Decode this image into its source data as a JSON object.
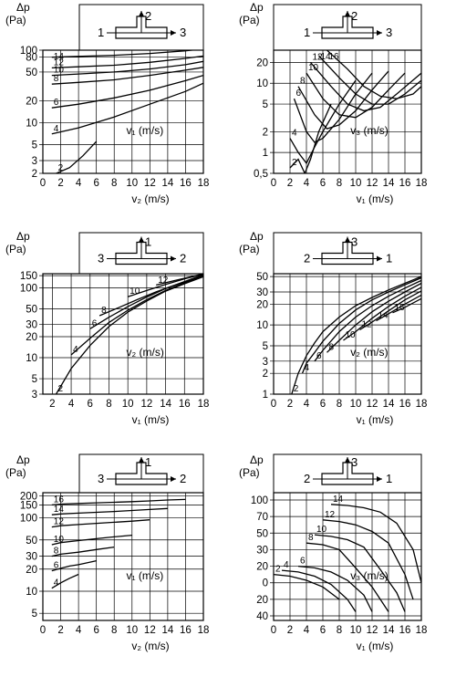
{
  "chart_data": [
    {
      "type": "line",
      "ylabel_line1": "Δp",
      "ylabel_line2": "(Pa)",
      "xlabel": "v₂ (m/s)",
      "series_label": "v₁ (m/s)",
      "xticks": [
        0,
        2,
        4,
        6,
        8,
        10,
        12,
        14,
        16,
        18
      ],
      "yticks": [
        2,
        3,
        5,
        10,
        20,
        50,
        80,
        100
      ],
      "ytick_labels": [
        "2",
        "3",
        "5",
        "10",
        "20",
        "50",
        "80",
        "100"
      ],
      "yscale": "log",
      "xlim": [
        0,
        18
      ],
      "ylim": [
        2,
        100
      ],
      "diagram": {
        "inlet": "1",
        "branch": "2",
        "outlet": "3",
        "branch_dir": "up"
      },
      "series": [
        {
          "name": "2",
          "x": [
            1.5,
            3,
            4.5,
            6
          ],
          "y": [
            2,
            2.4,
            3.5,
            5.5
          ]
        },
        {
          "name": "4",
          "x": [
            1,
            4,
            8,
            12,
            16,
            18
          ],
          "y": [
            7,
            8.5,
            12,
            18,
            27,
            35
          ]
        },
        {
          "name": "6",
          "x": [
            1,
            4,
            8,
            12,
            16,
            18
          ],
          "y": [
            16,
            18,
            22,
            28,
            38,
            45
          ]
        },
        {
          "name": "8",
          "x": [
            1,
            4,
            8,
            12,
            16,
            18
          ],
          "y": [
            34,
            36,
            39,
            45,
            53,
            58
          ]
        },
        {
          "name": "10",
          "x": [
            1,
            4,
            8,
            12,
            16,
            18
          ],
          "y": [
            45,
            47,
            50,
            55,
            63,
            70
          ]
        },
        {
          "name": "12",
          "x": [
            1,
            4,
            8,
            12,
            16,
            18
          ],
          "y": [
            57,
            59,
            62,
            68,
            77,
            83
          ]
        },
        {
          "name": "14",
          "x": [
            1,
            4,
            8,
            12,
            16,
            18
          ],
          "y": [
            80,
            82,
            85,
            90,
            98,
            104
          ]
        }
      ]
    },
    {
      "type": "line",
      "ylabel_line1": "Δp",
      "ylabel_line2": "(Pa)",
      "xlabel": "v₁ (m/s)",
      "series_label": "v₃ (m/s)",
      "xticks": [
        0,
        2,
        4,
        6,
        8,
        10,
        12,
        14,
        16,
        18
      ],
      "yticks": [
        0.5,
        1,
        2,
        5,
        10,
        20
      ],
      "ytick_labels": [
        "0,5",
        "1",
        "2",
        "5",
        "10",
        "20"
      ],
      "yscale": "log",
      "xlim": [
        0,
        18
      ],
      "ylim": [
        0.5,
        30
      ],
      "diagram": {
        "inlet": "1",
        "branch": "2",
        "outlet": "3",
        "branch_dir": "up"
      },
      "series": [
        {
          "name": "2",
          "x": [
            2,
            3,
            3.8,
            4.5,
            5.5,
            7
          ],
          "y": [
            0.6,
            0.8,
            0.5,
            0.8,
            2,
            5
          ]
        },
        {
          "name": "4",
          "x": [
            2,
            3,
            4,
            5,
            6,
            8,
            10
          ],
          "y": [
            1.6,
            1,
            0.7,
            1.2,
            2,
            5,
            11
          ]
        },
        {
          "name": "6",
          "x": [
            2.5,
            4,
            5,
            6,
            8,
            10,
            12
          ],
          "y": [
            6,
            2,
            1.4,
            1.6,
            3,
            7,
            14
          ]
        },
        {
          "name": "8",
          "x": [
            3,
            5,
            6.5,
            8,
            10,
            12,
            14
          ],
          "y": [
            9,
            3.5,
            2.2,
            2.5,
            4,
            8,
            15
          ]
        },
        {
          "name": "10",
          "x": [
            4,
            6,
            8,
            10,
            12,
            14,
            16
          ],
          "y": [
            14,
            6,
            3.5,
            3.2,
            4.5,
            8,
            14
          ]
        },
        {
          "name": "12",
          "x": [
            4.5,
            7,
            9,
            11,
            13,
            15,
            18
          ],
          "y": [
            20,
            9,
            5,
            4,
            4.5,
            7,
            14
          ]
        },
        {
          "name": "14",
          "x": [
            5.5,
            8,
            10,
            12,
            14,
            16,
            18
          ],
          "y": [
            25,
            12,
            7,
            5,
            5,
            7,
            11
          ]
        },
        {
          "name": "16",
          "x": [
            6.5,
            9,
            11,
            13,
            15,
            17,
            18
          ],
          "y": [
            30,
            16,
            9,
            6.5,
            6,
            7,
            9
          ]
        }
      ]
    },
    {
      "type": "line",
      "ylabel_line1": "Δp",
      "ylabel_line2": "(Pa)",
      "xlabel": "v₁ (m/s)",
      "series_label": "v₂ (m/s)",
      "xticks": [
        2,
        4,
        6,
        8,
        10,
        12,
        14,
        16,
        18
      ],
      "yticks": [
        3,
        5,
        10,
        20,
        30,
        50,
        100,
        150
      ],
      "ytick_labels": [
        "3",
        "5",
        "10",
        "20",
        "30",
        "50",
        "100",
        "150"
      ],
      "yscale": "log",
      "xlim": [
        1,
        18
      ],
      "ylim": [
        3,
        160
      ],
      "diagram": {
        "inlet": "3",
        "branch": "1",
        "outlet": "2",
        "branch_dir": "up"
      },
      "series": [
        {
          "name": "2",
          "x": [
            2.4,
            4,
            6,
            8,
            10,
            12,
            14,
            16,
            18
          ],
          "y": [
            3,
            7,
            15,
            28,
            45,
            65,
            90,
            115,
            145
          ]
        },
        {
          "name": "4",
          "x": [
            4,
            6,
            8,
            10,
            12,
            14,
            16,
            18
          ],
          "y": [
            11,
            19,
            32,
            48,
            68,
            92,
            118,
            150
          ]
        },
        {
          "name": "6",
          "x": [
            6,
            8,
            10,
            12,
            14,
            16,
            18
          ],
          "y": [
            26,
            38,
            54,
            74,
            98,
            122,
            152
          ]
        },
        {
          "name": "8",
          "x": [
            7,
            9,
            11,
            13,
            15,
            17,
            18
          ],
          "y": [
            40,
            52,
            68,
            88,
            110,
            138,
            155
          ]
        },
        {
          "name": "10",
          "x": [
            10,
            12,
            14,
            16,
            18
          ],
          "y": [
            75,
            92,
            112,
            135,
            158
          ]
        },
        {
          "name": "12",
          "x": [
            13,
            15,
            17,
            18
          ],
          "y": [
            110,
            128,
            148,
            160
          ]
        }
      ]
    },
    {
      "type": "line",
      "ylabel_line1": "Δp",
      "ylabel_line2": "(Pa)",
      "xlabel": "v₁ (m/s)",
      "series_label": "v₂ (m/s)",
      "xticks": [
        0,
        2,
        4,
        6,
        8,
        10,
        12,
        14,
        16,
        18
      ],
      "yticks": [
        1,
        2,
        3,
        5,
        10,
        20,
        30,
        50
      ],
      "ytick_labels": [
        "1",
        "2",
        "3",
        "5",
        "10",
        "20",
        "30",
        "50"
      ],
      "yscale": "log",
      "xlim": [
        0,
        18
      ],
      "ylim": [
        1,
        55
      ],
      "diagram": {
        "inlet": "2",
        "branch": "3",
        "outlet": "1",
        "branch_dir": "up"
      },
      "series": [
        {
          "name": "2",
          "x": [
            2.2,
            3,
            4,
            5,
            6,
            8,
            10,
            12,
            14,
            16,
            18
          ],
          "y": [
            1,
            2,
            3.6,
            5.5,
            8,
            13,
            19,
            25,
            32,
            40,
            50
          ]
        },
        {
          "name": "4",
          "x": [
            3.5,
            4,
            5,
            6,
            8,
            10,
            12,
            14,
            16,
            18
          ],
          "y": [
            2,
            2.8,
            4,
            5.8,
            10.5,
            16.5,
            23,
            30,
            38,
            48
          ]
        },
        {
          "name": "6",
          "x": [
            5,
            6,
            8,
            10,
            12,
            14,
            16,
            18
          ],
          "y": [
            3,
            4.3,
            8,
            13,
            19,
            26,
            34,
            44
          ]
        },
        {
          "name": "8",
          "x": [
            6.5,
            8,
            10,
            12,
            14,
            16,
            18
          ],
          "y": [
            4,
            6,
            10,
            15.5,
            22,
            30,
            40
          ]
        },
        {
          "name": "10",
          "x": [
            8.5,
            10,
            12,
            14,
            16,
            18
          ],
          "y": [
            6,
            8,
            12.5,
            18.5,
            26,
            35
          ]
        },
        {
          "name": "12",
          "x": [
            10.5,
            12,
            14,
            16,
            18
          ],
          "y": [
            8.5,
            11,
            16,
            23,
            31
          ]
        },
        {
          "name": "14",
          "x": [
            12.5,
            14,
            16,
            18
          ],
          "y": [
            11.5,
            14.5,
            20,
            27
          ]
        },
        {
          "name": "16",
          "x": [
            14.5,
            16,
            18
          ],
          "y": [
            15,
            18,
            24
          ]
        }
      ]
    },
    {
      "type": "line",
      "ylabel_line1": "Δp",
      "ylabel_line2": "(Pa)",
      "xlabel": "v₂ (m/s)",
      "series_label": "v₁ (m/s)",
      "xticks": [
        0,
        2,
        4,
        6,
        8,
        10,
        12,
        14,
        16,
        18
      ],
      "yticks": [
        5,
        10,
        20,
        30,
        50,
        100,
        150,
        200
      ],
      "ytick_labels": [
        "5",
        "10",
        "20",
        "30",
        "50",
        "100",
        "150",
        "200"
      ],
      "yscale": "log",
      "xlim": [
        0,
        18
      ],
      "ylim": [
        4,
        220
      ],
      "diagram": {
        "inlet": "3",
        "branch": "1",
        "outlet": "2",
        "branch_dir": "up"
      },
      "series": [
        {
          "name": "4",
          "x": [
            1,
            2,
            3,
            4
          ],
          "y": [
            11,
            13,
            15,
            17
          ]
        },
        {
          "name": "6",
          "x": [
            1,
            2,
            3,
            4,
            5,
            6
          ],
          "y": [
            19,
            20.5,
            22,
            23,
            24.5,
            26
          ]
        },
        {
          "name": "8",
          "x": [
            1,
            2,
            4,
            6,
            8
          ],
          "y": [
            30,
            32,
            34,
            37,
            40
          ]
        },
        {
          "name": "10",
          "x": [
            1,
            2,
            4,
            6,
            8,
            10
          ],
          "y": [
            43,
            46,
            49,
            52,
            55,
            58
          ]
        },
        {
          "name": "12",
          "x": [
            1,
            2,
            4,
            6,
            8,
            10,
            12
          ],
          "y": [
            75,
            78,
            81,
            84,
            87,
            90,
            94
          ]
        },
        {
          "name": "14",
          "x": [
            1,
            2,
            4,
            6,
            8,
            10,
            12,
            14
          ],
          "y": [
            110,
            113,
            116,
            119,
            122,
            126,
            130,
            134
          ]
        },
        {
          "name": "16",
          "x": [
            1,
            2,
            4,
            6,
            8,
            10,
            12,
            14,
            16
          ],
          "y": [
            150,
            154,
            157,
            160,
            163,
            166,
            170,
            175,
            178
          ]
        }
      ]
    },
    {
      "type": "line",
      "ylabel_line1": "Δp",
      "ylabel_line2": "(Pa)",
      "xlabel": "v₁ (m/s)",
      "series_label": "v₃ (m/s)",
      "xticks": [
        0,
        2,
        4,
        6,
        8,
        10,
        12,
        14,
        16,
        18
      ],
      "yticks": [
        100,
        70,
        50,
        30,
        20,
        0,
        -20,
        -40
      ],
      "ytick_labels": [
        "100",
        "70",
        "50",
        "30",
        "20",
        "0",
        "20",
        "40"
      ],
      "yscale": "linear-piecewise",
      "xlim": [
        0,
        18
      ],
      "ylim": [
        -40,
        100
      ],
      "diagram": {
        "inlet": "2",
        "branch": "3",
        "outlet": "1",
        "branch_dir": "up"
      },
      "series": [
        {
          "name": "2",
          "x": [
            0,
            2,
            4,
            6,
            8
          ],
          "y": [
            10,
            8,
            3,
            -5,
            -20
          ]
        },
        {
          "name": "4",
          "x": [
            1,
            3,
            5,
            7,
            9,
            10
          ],
          "y": [
            15,
            13,
            8,
            -2,
            -20,
            -35
          ]
        },
        {
          "name": "6",
          "x": [
            3,
            5,
            7,
            9,
            11,
            12
          ],
          "y": [
            20,
            18,
            13,
            3,
            -15,
            -35
          ]
        },
        {
          "name": "8",
          "x": [
            4,
            6,
            8,
            10,
            12,
            14
          ],
          "y": [
            38,
            36,
            30,
            18,
            -5,
            -35
          ]
        },
        {
          "name": "10",
          "x": [
            5,
            7,
            9,
            11,
            13,
            15,
            16
          ],
          "y": [
            48,
            46,
            42,
            33,
            16,
            -12,
            -35
          ]
        },
        {
          "name": "12",
          "x": [
            6,
            8,
            10,
            12,
            14,
            16,
            17
          ],
          "y": [
            66,
            64,
            60,
            52,
            38,
            10,
            -20
          ]
        },
        {
          "name": "14",
          "x": [
            7,
            9,
            11,
            13,
            15,
            17,
            18
          ],
          "y": [
            92,
            90,
            86,
            78,
            62,
            30,
            0
          ]
        }
      ]
    }
  ]
}
